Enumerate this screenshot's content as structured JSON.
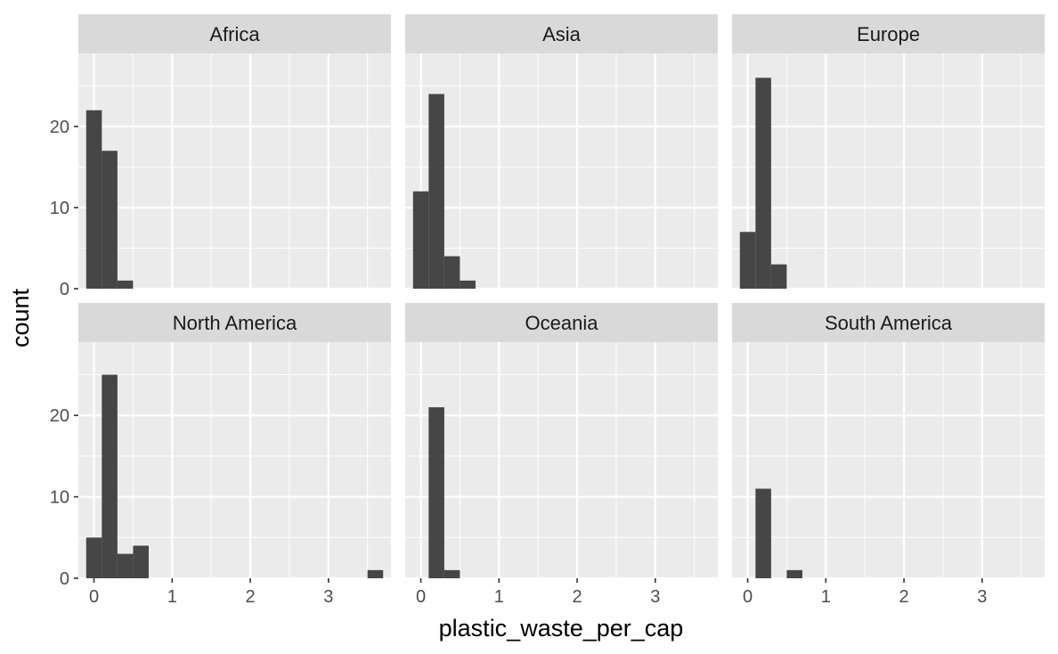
{
  "chart_data": {
    "type": "bar",
    "subtype": "faceted-histogram",
    "xlabel": "plastic_waste_per_cap",
    "ylabel": "count",
    "binwidth": 0.2,
    "xlim": [
      -0.2,
      3.8
    ],
    "ylim": [
      0,
      29
    ],
    "x_ticks": [
      "0",
      "1",
      "2",
      "3"
    ],
    "y_ticks": [
      "0",
      "10",
      "20"
    ],
    "grid": true,
    "panel_background": "#ebebeb",
    "strip_background": "#d9d9d9",
    "bar_color": "#464646",
    "facets": [
      {
        "name": "Africa",
        "bins": [
          {
            "x": 0.0,
            "count": 22
          },
          {
            "x": 0.2,
            "count": 17
          },
          {
            "x": 0.4,
            "count": 1
          }
        ]
      },
      {
        "name": "Asia",
        "bins": [
          {
            "x": 0.0,
            "count": 12
          },
          {
            "x": 0.2,
            "count": 24
          },
          {
            "x": 0.4,
            "count": 4
          },
          {
            "x": 0.6,
            "count": 1
          }
        ]
      },
      {
        "name": "Europe",
        "bins": [
          {
            "x": 0.0,
            "count": 7
          },
          {
            "x": 0.2,
            "count": 26
          },
          {
            "x": 0.4,
            "count": 3
          }
        ]
      },
      {
        "name": "North America",
        "bins": [
          {
            "x": 0.0,
            "count": 5
          },
          {
            "x": 0.2,
            "count": 25
          },
          {
            "x": 0.4,
            "count": 3
          },
          {
            "x": 0.6,
            "count": 4
          },
          {
            "x": 3.6,
            "count": 1
          }
        ]
      },
      {
        "name": "Oceania",
        "bins": [
          {
            "x": 0.2,
            "count": 21
          },
          {
            "x": 0.4,
            "count": 1
          }
        ]
      },
      {
        "name": "South America",
        "bins": [
          {
            "x": 0.2,
            "count": 11
          },
          {
            "x": 0.6,
            "count": 1
          }
        ]
      }
    ]
  }
}
